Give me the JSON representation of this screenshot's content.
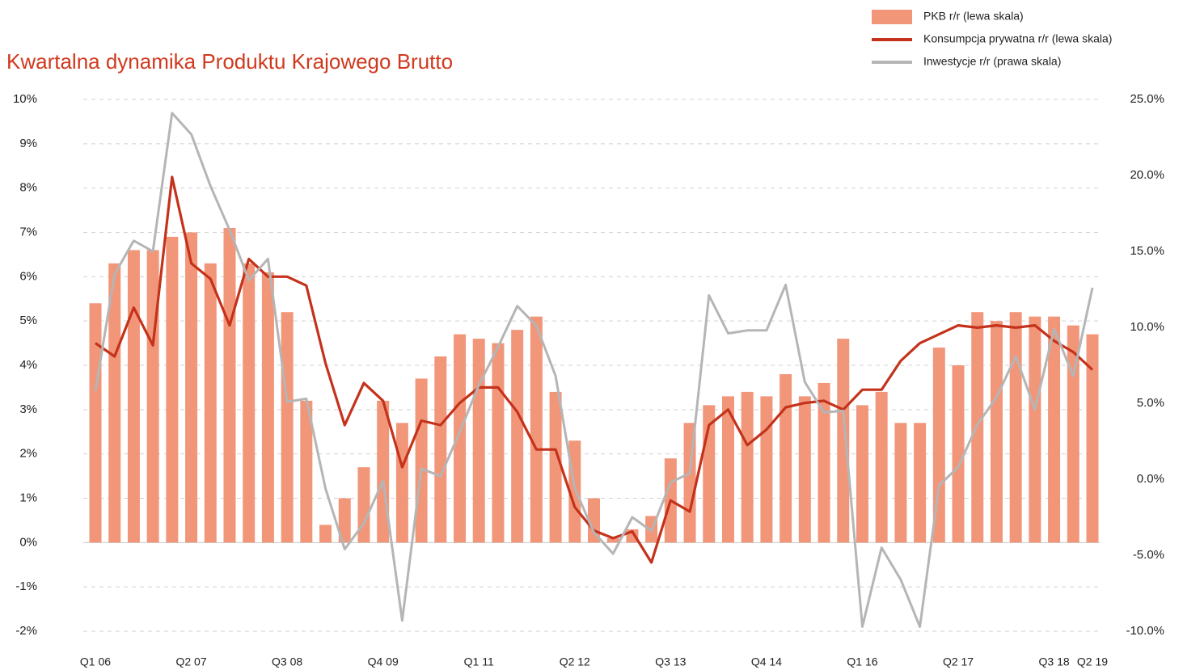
{
  "chart_data": {
    "type": "bar_line",
    "title": "Kwartalna dynamika Produktu Krajowego Brutto",
    "categories": [
      "Q1 06",
      null,
      null,
      null,
      null,
      "Q2 07",
      null,
      null,
      null,
      null,
      "Q3 08",
      null,
      null,
      null,
      null,
      "Q4 09",
      null,
      null,
      null,
      null,
      "Q1 11",
      null,
      null,
      null,
      null,
      "Q2 12",
      null,
      null,
      null,
      null,
      "Q3 13",
      null,
      null,
      null,
      null,
      "Q4 14",
      null,
      null,
      null,
      null,
      "Q1 16",
      null,
      null,
      null,
      null,
      "Q2 17",
      null,
      null,
      null,
      null,
      "Q3 18",
      null,
      "Q2 19"
    ],
    "series": [
      {
        "name": "PKB r/r (lewa skala)",
        "kind": "bar",
        "color": "#f2967a",
        "axis": "y",
        "values": [
          5.4,
          6.3,
          6.6,
          6.6,
          6.9,
          7.0,
          6.3,
          7.1,
          6.3,
          6.1,
          5.2,
          3.2,
          0.4,
          1.0,
          1.7,
          3.2,
          2.7,
          3.7,
          4.2,
          4.7,
          4.6,
          4.5,
          4.8,
          5.1,
          3.4,
          2.3,
          1.0,
          0.1,
          0.3,
          0.6,
          1.9,
          2.7,
          3.1,
          3.3,
          3.4,
          3.3,
          3.8,
          3.3,
          3.6,
          4.6,
          3.1,
          3.4,
          2.7,
          2.7,
          4.4,
          4.0,
          5.2,
          5.0,
          5.2,
          5.1,
          5.1,
          4.9,
          4.7
        ]
      },
      {
        "name": "Konsumpcja prywatna r/r (lewa skala)",
        "kind": "line",
        "color": "#c4321b",
        "axis": "y",
        "values": [
          4.5,
          4.2,
          5.3,
          4.45,
          8.25,
          6.3,
          5.95,
          4.9,
          6.4,
          6.0,
          6.0,
          5.8,
          4.05,
          2.65,
          3.6,
          3.2,
          1.7,
          2.75,
          2.65,
          3.15,
          3.5,
          3.5,
          2.95,
          2.1,
          2.1,
          0.8,
          0.27,
          0.1,
          0.25,
          -0.45,
          0.95,
          0.7,
          2.65,
          3.0,
          2.2,
          2.55,
          3.05,
          3.15,
          3.2,
          3.0,
          3.45,
          3.45,
          4.1,
          4.5,
          4.7,
          4.9,
          4.85,
          4.9,
          4.85,
          4.9,
          4.55,
          4.3,
          3.9
        ]
      },
      {
        "name": "Inwestycje r/r (prawa skala)",
        "kind": "line",
        "color": "#b5b5b5",
        "axis": "y2",
        "values": [
          5.8,
          13.5,
          15.7,
          15.0,
          24.1,
          22.7,
          19.3,
          16.4,
          13.1,
          14.5,
          5.1,
          5.3,
          -0.6,
          -4.6,
          -2.9,
          -0.1,
          -9.3,
          0.7,
          0.2,
          3.1,
          6.2,
          8.7,
          11.4,
          10.1,
          6.8,
          -0.6,
          -3.5,
          -4.9,
          -2.5,
          -3.4,
          -0.2,
          0.4,
          12.1,
          9.6,
          9.8,
          9.8,
          12.8,
          6.4,
          4.4,
          4.5,
          -9.7,
          -4.5,
          -6.6,
          -9.7,
          -0.4,
          0.8,
          3.6,
          5.4,
          8.1,
          4.6,
          9.9,
          6.8,
          12.6
        ]
      }
    ],
    "ylim": [
      -2,
      10
    ],
    "yticks": [
      {
        "value": -2,
        "label": "-2%"
      },
      {
        "value": -1,
        "label": "-1%"
      },
      {
        "value": 0,
        "label": "0%"
      },
      {
        "value": 1,
        "label": "1%"
      },
      {
        "value": 2,
        "label": "2%"
      },
      {
        "value": 3,
        "label": "3%"
      },
      {
        "value": 4,
        "label": "4%"
      },
      {
        "value": 5,
        "label": "5%"
      },
      {
        "value": 6,
        "label": "6%"
      },
      {
        "value": 7,
        "label": "7%"
      },
      {
        "value": 8,
        "label": "8%"
      },
      {
        "value": 9,
        "label": "9%"
      },
      {
        "value": 10,
        "label": "10%"
      }
    ],
    "y2lim": [
      -10,
      25
    ],
    "y2ticks": [
      {
        "value": -10,
        "label": "-10.0%"
      },
      {
        "value": -5,
        "label": "-5.0%"
      },
      {
        "value": 0,
        "label": "0.0%"
      },
      {
        "value": 5,
        "label": "5.0%"
      },
      {
        "value": 10,
        "label": "10.0%"
      },
      {
        "value": 15,
        "label": "15.0%"
      },
      {
        "value": 20,
        "label": "20.0%"
      },
      {
        "value": 25,
        "label": "25.0%"
      }
    ],
    "grid": true,
    "legend": "top-right",
    "title_color": "#d0391e"
  }
}
